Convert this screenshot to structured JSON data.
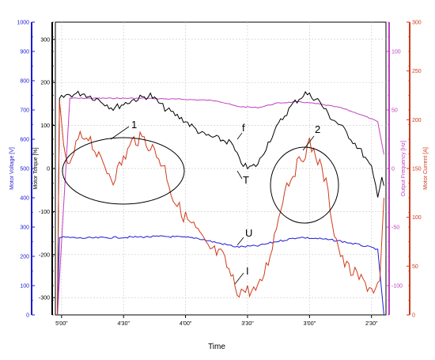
{
  "toolbar": {
    "buttons": [
      {
        "icon": "chart-icon",
        "color": "#3a3ad0"
      },
      {
        "icon": "chart-icon",
        "color": "#3a3ad0"
      },
      {
        "icon": "chart-icon",
        "color": "#c83c3c"
      },
      {
        "icon": "chart-icon",
        "color": "#6a6a6a"
      },
      {
        "icon": "chart-icon",
        "color": "#2a9a2a"
      }
    ]
  },
  "chart_data": {
    "type": "line",
    "xlabel": "Time",
    "x_tick_labels": [
      "5'00\"",
      "4'30\"",
      "4'00\"",
      "3'30\"",
      "3'00\"",
      "2'30\""
    ],
    "x_tick_values": [
      300,
      270,
      240,
      210,
      180,
      150
    ],
    "x_range": [
      303,
      143
    ],
    "grid": true,
    "axes": [
      {
        "id": "voltage",
        "label": "Motor Voltage [V]",
        "color": "#1a1ad6",
        "range": [
          0,
          1000
        ],
        "ticks": [
          "0",
          "100",
          "200",
          "300",
          "400",
          "500",
          "600",
          "700",
          "800",
          "900",
          "1000"
        ]
      },
      {
        "id": "torque",
        "label": "Motor Torque [%]",
        "color": "#000000",
        "range": [
          -340,
          340
        ],
        "ticks": [
          "-300",
          "-200",
          "-100",
          "0",
          "100",
          "200",
          "300"
        ]
      },
      {
        "id": "frequency",
        "label": "Output Frequency [Hz]",
        "color": "#c040c0",
        "range": [
          -125,
          125
        ],
        "ticks": [
          "-100",
          "-50",
          "0",
          "50",
          "100"
        ]
      },
      {
        "id": "current",
        "label": "Motor Current [A]",
        "color": "#d03a1a",
        "range": [
          0,
          300
        ],
        "ticks": [
          "0",
          "50",
          "100",
          "150",
          "200",
          "250",
          "300"
        ]
      }
    ],
    "series": [
      {
        "name": "f",
        "axis": "frequency",
        "color": "#c040c0",
        "x": [
          302,
          296,
          280,
          260,
          240,
          225,
          215,
          205,
          195,
          185,
          175,
          165,
          155,
          147,
          144
        ],
        "y": [
          -125,
          60,
          60,
          60,
          59,
          58,
          53,
          52,
          56,
          57,
          55,
          52,
          46,
          40,
          12
        ]
      },
      {
        "name": "T",
        "axis": "torque",
        "color": "#000000",
        "x": [
          302,
          301,
          298,
          290,
          282,
          275,
          265,
          257,
          250,
          240,
          232,
          225,
          218,
          214,
          210,
          205,
          200,
          194,
          188,
          182,
          176,
          170,
          165,
          160,
          155,
          150,
          147,
          145,
          144
        ],
        "y": [
          -330,
          160,
          170,
          175,
          160,
          140,
          160,
          170,
          140,
          110,
          80,
          70,
          60,
          20,
          0,
          10,
          60,
          110,
          150,
          175,
          160,
          120,
          100,
          70,
          40,
          0,
          -60,
          -20,
          -40
        ]
      },
      {
        "name": "U",
        "axis": "voltage",
        "color": "#1a1ad6",
        "x": [
          302,
          301,
          299,
          290,
          270,
          250,
          235,
          225,
          215,
          205,
          195,
          185,
          175,
          165,
          155,
          147,
          144
        ],
        "y": [
          0,
          265,
          265,
          262,
          265,
          268,
          263,
          247,
          232,
          236,
          252,
          265,
          260,
          252,
          238,
          225,
          0
        ]
      },
      {
        "name": "I",
        "axis": "current",
        "color": "#d03a1a",
        "x": [
          302,
          301,
          299,
          296,
          292,
          287,
          282,
          275,
          270,
          265,
          260,
          255,
          250,
          246,
          242,
          238,
          234,
          230,
          226,
          222,
          218,
          215,
          210,
          205,
          200,
          196,
          192,
          188,
          184,
          180,
          176,
          172,
          168,
          164,
          160,
          156,
          152,
          148,
          146,
          144
        ],
        "y": [
          0,
          212,
          170,
          150,
          180,
          185,
          160,
          140,
          160,
          180,
          180,
          168,
          150,
          120,
          105,
          95,
          85,
          70,
          65,
          60,
          40,
          25,
          25,
          25,
          55,
          90,
          130,
          145,
          160,
          175,
          160,
          135,
          85,
          55,
          45,
          38,
          30,
          25,
          35,
          120
        ]
      }
    ],
    "annotations": [
      {
        "text": "1",
        "kind": "ellipse",
        "x_data": 272,
        "y_torque": 5
      },
      {
        "text": "2",
        "kind": "ellipse",
        "x_data": 181,
        "y_torque": -40
      },
      {
        "text": "f",
        "kind": "label"
      },
      {
        "text": "T",
        "kind": "label"
      },
      {
        "text": "U",
        "kind": "label"
      },
      {
        "text": "I",
        "kind": "label"
      }
    ]
  }
}
